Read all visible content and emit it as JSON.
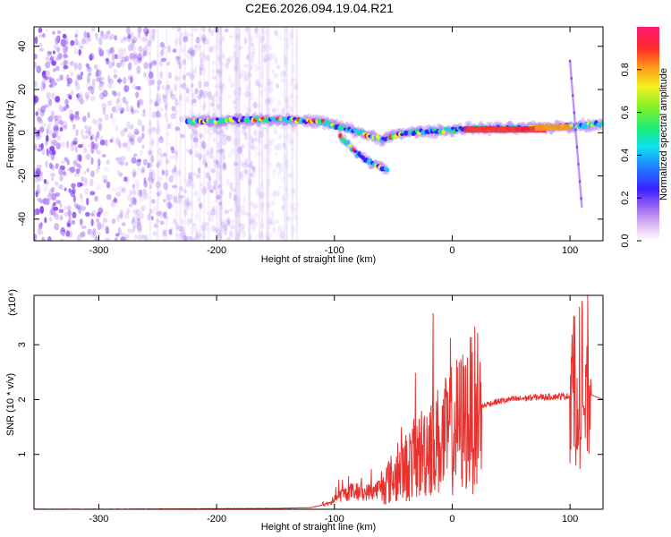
{
  "figure_title": "C2E6.2026.094.19.04.R21",
  "colors": {
    "snr_line": "#e8322f",
    "spectral_low": "#7a2cf0",
    "spectral_mid": "#18c8ff",
    "spectral_high": "#ff2a2a",
    "frame": "#000000"
  },
  "chart_data": [
    {
      "type": "heatmap",
      "title": "",
      "xlabel": "Height of straight line (km)",
      "ylabel": "Frequency (Hz)",
      "xlim": [
        -355,
        128
      ],
      "ylim": [
        -50,
        49
      ],
      "x_ticks": [
        -300,
        -200,
        -100,
        0,
        100
      ],
      "y_ticks": [
        -40,
        -20,
        0,
        20,
        40
      ],
      "colorbar": {
        "label": "Normalized spectral amplitude",
        "range": [
          0,
          1
        ],
        "ticks": [
          "0.0",
          "0.2",
          "0.4",
          "0.6",
          "0.8"
        ],
        "colormap": "rainbow"
      },
      "features": [
        {
          "name": "noise",
          "x_range": [
            -355,
            -130
          ],
          "freq_range": [
            -50,
            49
          ]
        },
        {
          "name": "main-band",
          "x": [
            -225,
            -180,
            -140,
            -110,
            -90,
            -60,
            -40,
            -10,
            20,
            60,
            100,
            128
          ],
          "freq": [
            5,
            6,
            6,
            5,
            2,
            -3,
            0,
            1,
            2,
            2,
            3,
            4
          ]
        },
        {
          "name": "lower-branch",
          "x": [
            -95,
            -80,
            -65,
            -55
          ],
          "freq": [
            -2,
            -10,
            -15,
            -17
          ]
        },
        {
          "name": "spike",
          "x": [
            100,
            103,
            106,
            110
          ],
          "freq": [
            33,
            10,
            -5,
            -34
          ]
        }
      ]
    },
    {
      "type": "line",
      "title": "",
      "xlabel": "Height of straight line (km)",
      "ylabel": "SNR (10 * v/v)",
      "y_multiplier": "(x10⁴)",
      "xlim": [
        -355,
        128
      ],
      "ylim": [
        0,
        3.9
      ],
      "x_ticks": [
        -300,
        -200,
        -100,
        0,
        100
      ],
      "y_ticks": [
        1,
        2,
        3
      ],
      "series": [
        {
          "x": [
            -355,
            -300,
            -250,
            -200,
            -150,
            -120,
            -105,
            -95,
            -85,
            -75,
            -65,
            -55,
            -45,
            -35,
            -25,
            -18,
            -10,
            0,
            10,
            20,
            30,
            40,
            50,
            60,
            70,
            80,
            90,
            100,
            104,
            107,
            110,
            113,
            116,
            128
          ],
          "y": [
            0.0,
            0.0,
            0.005,
            0.01,
            0.015,
            0.03,
            0.1,
            0.25,
            0.33,
            0.3,
            0.35,
            0.5,
            0.65,
            0.85,
            1.05,
            1.3,
            1.2,
            1.45,
            1.62,
            1.82,
            1.92,
            1.97,
            2.0,
            2.02,
            2.04,
            2.05,
            2.06,
            2.06,
            2.3,
            1.2,
            2.5,
            1.7,
            2.1,
            2.0
          ]
        }
      ]
    }
  ]
}
